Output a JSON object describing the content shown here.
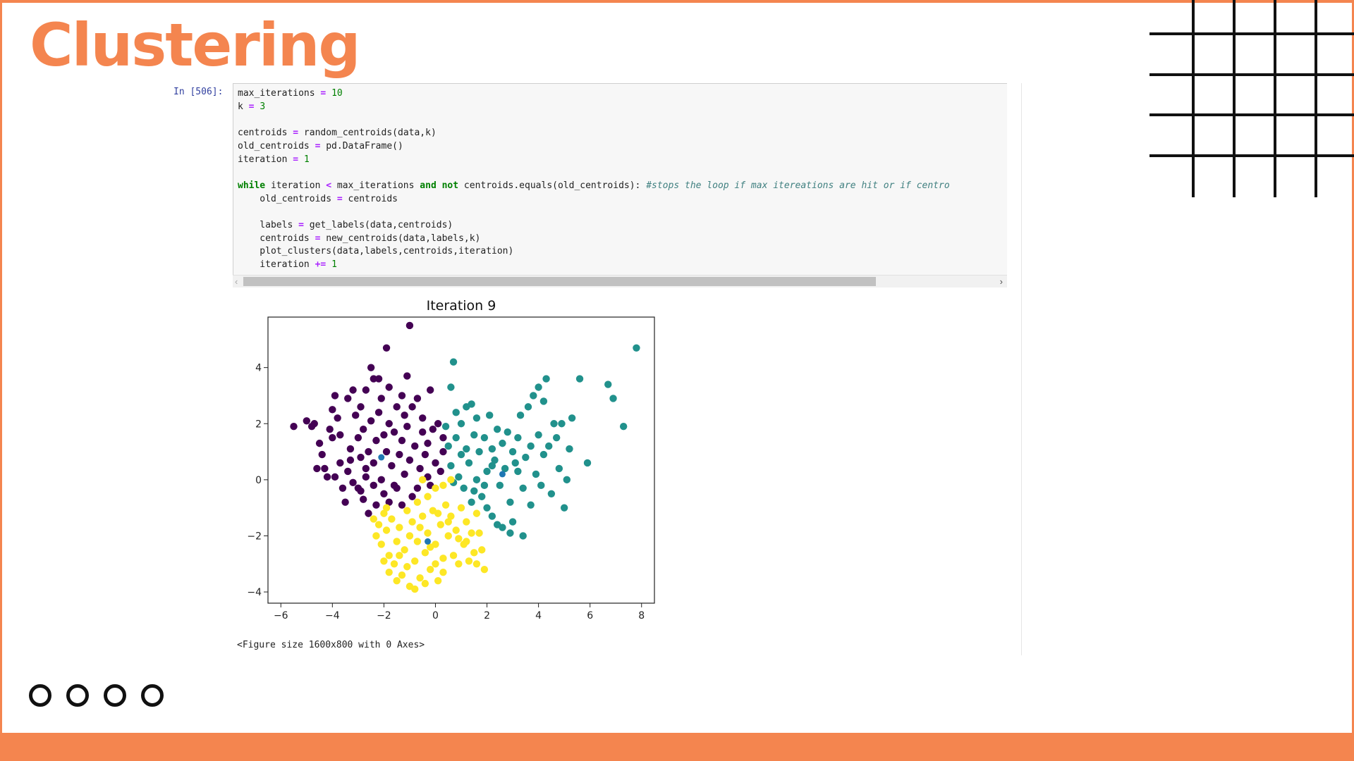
{
  "slide": {
    "title": "Clustering",
    "accent_color": "#f4854f",
    "nav_dots": [
      "circle-outline",
      "circle-outline",
      "circle-outline",
      "circle-outline"
    ]
  },
  "notebook": {
    "prompt": "In [506]:",
    "code_lines": [
      [
        {
          "t": "max_iterations "
        },
        {
          "t": "=",
          "k": "op"
        },
        {
          "t": " "
        },
        {
          "t": "10",
          "k": "num"
        }
      ],
      [
        {
          "t": "k "
        },
        {
          "t": "=",
          "k": "op"
        },
        {
          "t": " "
        },
        {
          "t": "3",
          "k": "num"
        }
      ],
      [],
      [
        {
          "t": "centroids "
        },
        {
          "t": "=",
          "k": "op"
        },
        {
          "t": " random_centroids(data,k)"
        }
      ],
      [
        {
          "t": "old_centroids "
        },
        {
          "t": "=",
          "k": "op"
        },
        {
          "t": " pd.DataFrame()"
        }
      ],
      [
        {
          "t": "iteration "
        },
        {
          "t": "=",
          "k": "op"
        },
        {
          "t": " "
        },
        {
          "t": "1",
          "k": "num"
        }
      ],
      [],
      [
        {
          "t": "while",
          "k": "kw"
        },
        {
          "t": " iteration "
        },
        {
          "t": "<",
          "k": "op"
        },
        {
          "t": " max_iterations "
        },
        {
          "t": "and",
          "k": "kw"
        },
        {
          "t": " "
        },
        {
          "t": "not",
          "k": "kw"
        },
        {
          "t": " centroids.equals(old_centroids): "
        },
        {
          "t": "#stops the loop if max itereations are hit or if centro",
          "k": "cm"
        }
      ],
      [
        {
          "t": "    old_centroids "
        },
        {
          "t": "=",
          "k": "op"
        },
        {
          "t": " centroids"
        }
      ],
      [],
      [
        {
          "t": "    labels "
        },
        {
          "t": "=",
          "k": "op"
        },
        {
          "t": " get_labels(data,centroids)"
        }
      ],
      [
        {
          "t": "    centroids "
        },
        {
          "t": "=",
          "k": "op"
        },
        {
          "t": " new_centroids(data,labels,k)"
        }
      ],
      [
        {
          "t": "    plot_clusters(data,labels,centroids,iteration)"
        }
      ],
      [
        {
          "t": "    iteration "
        },
        {
          "t": "+=",
          "k": "op"
        },
        {
          "t": " "
        },
        {
          "t": "1",
          "k": "num"
        }
      ]
    ],
    "scroll_left": "‹",
    "scroll_right": "›",
    "scroll_thumb_fraction": 0.82,
    "output_text": "<Figure size 1600x800 with 0 Axes>"
  },
  "chart_data": {
    "type": "scatter",
    "title": "Iteration 9",
    "xlabel": "",
    "ylabel": "",
    "xlim": [
      -6.5,
      8.5
    ],
    "ylim": [
      -4.4,
      5.8
    ],
    "xticks": [
      -6,
      -4,
      -2,
      0,
      2,
      4,
      6,
      8
    ],
    "yticks": [
      -4,
      -2,
      0,
      2,
      4
    ],
    "xtick_labels": [
      "−6",
      "−4",
      "−2",
      "0",
      "2",
      "4",
      "6",
      "8"
    ],
    "ytick_labels": [
      "−4",
      "−2",
      "0",
      "2",
      "4"
    ],
    "legend": "none",
    "grid": false,
    "series": [
      {
        "color": "#440154",
        "points": [
          [
            -5.5,
            1.9
          ],
          [
            -5.0,
            2.1
          ],
          [
            -4.8,
            1.9
          ],
          [
            -4.7,
            2.0
          ],
          [
            -4.5,
            1.3
          ],
          [
            -4.4,
            0.9
          ],
          [
            -4.3,
            0.4
          ],
          [
            -4.2,
            0.1
          ],
          [
            -4.1,
            1.8
          ],
          [
            -4.0,
            1.5
          ],
          [
            -4.0,
            2.5
          ],
          [
            -3.9,
            3.0
          ],
          [
            -3.8,
            2.2
          ],
          [
            -3.7,
            1.6
          ],
          [
            -3.7,
            0.6
          ],
          [
            -3.6,
            -0.3
          ],
          [
            -3.5,
            -0.8
          ],
          [
            -3.4,
            0.3
          ],
          [
            -3.4,
            2.9
          ],
          [
            -3.3,
            1.1
          ],
          [
            -3.2,
            3.2
          ],
          [
            -3.1,
            2.3
          ],
          [
            -3.0,
            1.5
          ],
          [
            -3.0,
            -0.3
          ],
          [
            -2.9,
            2.6
          ],
          [
            -2.9,
            0.8
          ],
          [
            -2.8,
            -0.7
          ],
          [
            -2.8,
            1.8
          ],
          [
            -2.7,
            3.2
          ],
          [
            -2.7,
            0.1
          ],
          [
            -2.6,
            1.0
          ],
          [
            -2.6,
            -1.2
          ],
          [
            -2.5,
            2.1
          ],
          [
            -2.5,
            4.0
          ],
          [
            -2.4,
            3.6
          ],
          [
            -2.4,
            0.6
          ],
          [
            -2.3,
            1.4
          ],
          [
            -2.3,
            -0.9
          ],
          [
            -2.2,
            3.6
          ],
          [
            -2.2,
            2.4
          ],
          [
            -2.1,
            2.9
          ],
          [
            -2.1,
            0.0
          ],
          [
            -2.0,
            1.6
          ],
          [
            -2.0,
            -0.5
          ],
          [
            -1.9,
            4.7
          ],
          [
            -1.9,
            1.0
          ],
          [
            -1.8,
            3.3
          ],
          [
            -1.8,
            2.0
          ],
          [
            -1.8,
            -0.8
          ],
          [
            -1.7,
            0.5
          ],
          [
            -1.6,
            1.7
          ],
          [
            -1.5,
            2.6
          ],
          [
            -1.5,
            -0.3
          ],
          [
            -1.4,
            0.9
          ],
          [
            -1.3,
            3.0
          ],
          [
            -1.3,
            1.4
          ],
          [
            -1.2,
            2.3
          ],
          [
            -1.2,
            0.2
          ],
          [
            -1.1,
            3.7
          ],
          [
            -1.1,
            1.9
          ],
          [
            -1.0,
            5.5
          ],
          [
            -1.0,
            0.7
          ],
          [
            -0.9,
            2.6
          ],
          [
            -0.9,
            -0.6
          ],
          [
            -0.8,
            1.2
          ],
          [
            -0.7,
            2.9
          ],
          [
            -0.6,
            0.4
          ],
          [
            -0.5,
            1.7
          ],
          [
            -0.5,
            2.2
          ],
          [
            -0.4,
            0.9
          ],
          [
            -0.3,
            1.3
          ],
          [
            -0.3,
            0.1
          ],
          [
            -0.2,
            3.2
          ],
          [
            -0.1,
            1.8
          ],
          [
            0.0,
            0.6
          ],
          [
            0.1,
            2.0
          ],
          [
            0.2,
            0.3
          ],
          [
            0.3,
            1.0
          ],
          [
            0.3,
            1.5
          ],
          [
            -3.9,
            0.1
          ],
          [
            -4.6,
            0.4
          ],
          [
            -3.2,
            -0.1
          ],
          [
            -2.9,
            -0.4
          ],
          [
            -2.4,
            -0.2
          ],
          [
            -1.6,
            -0.2
          ],
          [
            -1.3,
            -0.9
          ],
          [
            -0.7,
            -0.3
          ],
          [
            -0.2,
            -0.2
          ],
          [
            -2.7,
            0.4
          ],
          [
            -3.3,
            0.7
          ]
        ]
      },
      {
        "color": "#21918c",
        "points": [
          [
            0.4,
            1.9
          ],
          [
            0.6,
            0.5
          ],
          [
            0.6,
            3.3
          ],
          [
            0.7,
            4.2
          ],
          [
            0.8,
            1.5
          ],
          [
            0.9,
            0.1
          ],
          [
            1.0,
            2.0
          ],
          [
            1.1,
            -0.3
          ],
          [
            1.2,
            1.1
          ],
          [
            1.2,
            2.6
          ],
          [
            1.3,
            0.6
          ],
          [
            1.4,
            -0.8
          ],
          [
            1.5,
            1.6
          ],
          [
            1.6,
            2.2
          ],
          [
            1.6,
            0.0
          ],
          [
            1.7,
            1.0
          ],
          [
            1.8,
            -0.6
          ],
          [
            1.9,
            1.5
          ],
          [
            2.0,
            0.3
          ],
          [
            2.1,
            2.3
          ],
          [
            2.2,
            1.1
          ],
          [
            2.2,
            -1.3
          ],
          [
            2.3,
            0.7
          ],
          [
            2.4,
            1.8
          ],
          [
            2.5,
            -0.2
          ],
          [
            2.6,
            1.3
          ],
          [
            2.6,
            -1.7
          ],
          [
            2.7,
            0.4
          ],
          [
            2.8,
            1.7
          ],
          [
            2.9,
            -0.8
          ],
          [
            3.0,
            1.0
          ],
          [
            3.0,
            -1.5
          ],
          [
            3.2,
            0.3
          ],
          [
            3.2,
            1.5
          ],
          [
            3.3,
            2.3
          ],
          [
            3.4,
            -0.3
          ],
          [
            3.5,
            0.8
          ],
          [
            3.6,
            2.6
          ],
          [
            3.7,
            1.2
          ],
          [
            3.7,
            -0.9
          ],
          [
            3.8,
            3.0
          ],
          [
            3.9,
            0.2
          ],
          [
            4.0,
            1.6
          ],
          [
            4.0,
            3.3
          ],
          [
            4.1,
            -0.2
          ],
          [
            4.2,
            0.9
          ],
          [
            4.3,
            3.6
          ],
          [
            4.4,
            1.2
          ],
          [
            4.5,
            -0.5
          ],
          [
            4.6,
            2.0
          ],
          [
            4.7,
            1.5
          ],
          [
            4.8,
            0.4
          ],
          [
            4.9,
            2.0
          ],
          [
            5.0,
            -1.0
          ],
          [
            5.1,
            0.0
          ],
          [
            5.2,
            1.1
          ],
          [
            5.3,
            2.2
          ],
          [
            5.6,
            3.6
          ],
          [
            5.9,
            0.6
          ],
          [
            6.7,
            3.4
          ],
          [
            6.9,
            2.9
          ],
          [
            7.3,
            1.9
          ],
          [
            7.8,
            4.7
          ],
          [
            0.7,
            -0.1
          ],
          [
            1.5,
            -0.4
          ],
          [
            2.0,
            -1.0
          ],
          [
            0.5,
            1.2
          ],
          [
            1.0,
            0.9
          ],
          [
            0.8,
            2.4
          ],
          [
            2.4,
            -1.6
          ],
          [
            3.4,
            -2.0
          ],
          [
            1.4,
            2.7
          ],
          [
            2.9,
            -1.9
          ],
          [
            4.2,
            2.8
          ],
          [
            1.9,
            -0.2
          ],
          [
            3.1,
            0.6
          ],
          [
            2.2,
            0.5
          ]
        ]
      },
      {
        "color": "#fde725",
        "points": [
          [
            -2.4,
            -1.4
          ],
          [
            -2.3,
            -2.0
          ],
          [
            -2.2,
            -1.6
          ],
          [
            -2.1,
            -2.3
          ],
          [
            -2.0,
            -1.2
          ],
          [
            -1.9,
            -1.8
          ],
          [
            -1.8,
            -2.7
          ],
          [
            -1.7,
            -1.4
          ],
          [
            -1.6,
            -3.0
          ],
          [
            -1.5,
            -2.2
          ],
          [
            -1.4,
            -1.7
          ],
          [
            -1.3,
            -3.4
          ],
          [
            -1.2,
            -2.5
          ],
          [
            -1.1,
            -1.1
          ],
          [
            -1.0,
            -2.0
          ],
          [
            -1.0,
            -3.8
          ],
          [
            -0.9,
            -1.5
          ],
          [
            -0.8,
            -2.9
          ],
          [
            -0.7,
            -0.8
          ],
          [
            -0.7,
            -2.2
          ],
          [
            -0.6,
            -3.5
          ],
          [
            -0.5,
            -1.3
          ],
          [
            -0.4,
            -2.6
          ],
          [
            -0.3,
            -0.6
          ],
          [
            -0.3,
            -1.9
          ],
          [
            -0.2,
            -3.2
          ],
          [
            -0.1,
            -1.1
          ],
          [
            0.0,
            -2.3
          ],
          [
            0.0,
            -0.3
          ],
          [
            0.1,
            -3.6
          ],
          [
            0.2,
            -1.6
          ],
          [
            0.3,
            -2.8
          ],
          [
            0.4,
            -0.9
          ],
          [
            0.5,
            -2.0
          ],
          [
            0.6,
            -1.3
          ],
          [
            0.7,
            -2.7
          ],
          [
            0.8,
            -1.8
          ],
          [
            0.9,
            -3.0
          ],
          [
            1.0,
            -1.0
          ],
          [
            1.1,
            -2.3
          ],
          [
            1.2,
            -1.5
          ],
          [
            1.3,
            -2.9
          ],
          [
            1.4,
            -1.9
          ],
          [
            1.5,
            -2.6
          ],
          [
            1.6,
            -1.2
          ],
          [
            1.7,
            -1.9
          ],
          [
            1.8,
            -2.5
          ],
          [
            1.9,
            -3.2
          ],
          [
            -1.5,
            -3.6
          ],
          [
            -0.8,
            -3.9
          ],
          [
            -0.4,
            -3.7
          ],
          [
            0.3,
            -3.3
          ],
          [
            -2.0,
            -2.9
          ],
          [
            -1.9,
            -1.0
          ],
          [
            0.6,
            0.0
          ],
          [
            0.3,
            -0.2
          ],
          [
            -0.5,
            0.0
          ],
          [
            -1.1,
            -3.1
          ],
          [
            0.9,
            -2.1
          ],
          [
            -0.6,
            -1.7
          ],
          [
            0.1,
            -1.2
          ],
          [
            -1.4,
            -2.7
          ],
          [
            1.2,
            -2.2
          ],
          [
            -0.2,
            -2.4
          ],
          [
            0.5,
            -1.5
          ],
          [
            -1.8,
            -3.3
          ],
          [
            1.6,
            -3.0
          ],
          [
            0.0,
            -3.0
          ]
        ]
      }
    ],
    "centroids": [
      [
        -2.1,
        0.8
      ],
      [
        2.6,
        0.2
      ],
      [
        -0.3,
        -2.2
      ]
    ],
    "centroid_color": "#1f77b4"
  }
}
